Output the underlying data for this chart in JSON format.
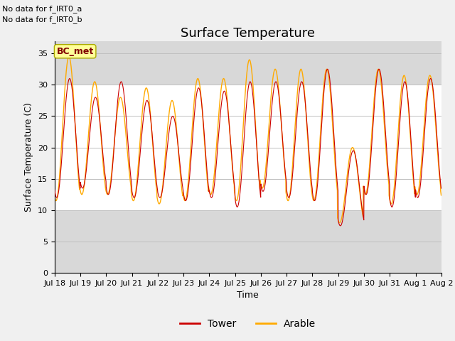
{
  "title": "Surface Temperature",
  "ylabel": "Surface Temperature (C)",
  "xlabel": "Time",
  "annotation_lines": [
    "No data for f_IRT0_a",
    "No data for f_IRT0_b"
  ],
  "legend_label_box": "BC_met",
  "legend_entries": [
    "Tower",
    "Arable"
  ],
  "legend_colors": [
    "#cc0000",
    "#ffaa00"
  ],
  "xtick_labels": [
    "Jul 18",
    "Jul 19",
    "Jul 20",
    "Jul 21",
    "Jul 22",
    "Jul 23",
    "Jul 24",
    "Jul 25",
    "Jul 26",
    "Jul 27",
    "Jul 28",
    "Jul 29",
    "Jul 30",
    "Jul 31",
    "Aug 1",
    "Aug 2"
  ],
  "ylim": [
    0,
    37
  ],
  "yticks": [
    0,
    5,
    10,
    15,
    20,
    25,
    30,
    35
  ],
  "band_color_outer": "#d8d8d8",
  "band_color_inner": "#ffffff",
  "title_fontsize": 13,
  "axis_fontsize": 9,
  "tick_fontsize": 8,
  "n_days": 15,
  "day_peaks_tower": [
    31.0,
    28.0,
    30.5,
    27.5,
    25.0,
    29.5,
    29.0,
    30.5,
    30.5,
    30.5,
    32.5,
    19.5,
    32.5,
    30.5,
    31.0
  ],
  "day_mins_tower": [
    12.0,
    13.5,
    12.5,
    12.0,
    12.0,
    11.5,
    12.0,
    10.5,
    13.0,
    12.0,
    11.5,
    7.5,
    12.5,
    10.5,
    12.0
  ],
  "day_peaks_arable": [
    34.5,
    30.5,
    28.0,
    29.5,
    27.5,
    31.0,
    31.0,
    34.0,
    32.5,
    32.5,
    32.5,
    20.0,
    32.5,
    31.5,
    31.5
  ],
  "day_mins_arable": [
    11.5,
    12.5,
    12.5,
    11.5,
    11.0,
    11.5,
    12.5,
    11.5,
    13.5,
    11.5,
    11.5,
    8.0,
    12.5,
    11.0,
    12.5
  ]
}
